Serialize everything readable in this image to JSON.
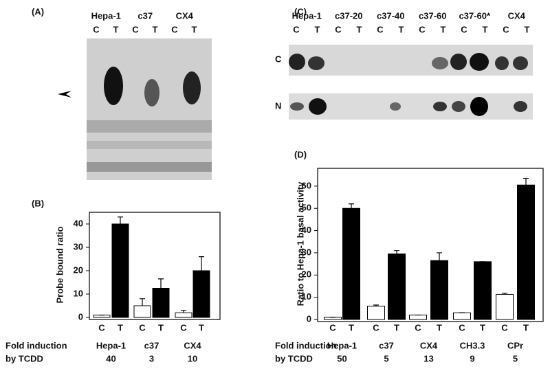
{
  "panel_a": {
    "label": "(A)",
    "groups": [
      "Hepa-1",
      "c37",
      "CX4"
    ],
    "lanes": [
      "C",
      "T",
      "C",
      "T",
      "C",
      "T"
    ]
  },
  "panel_c": {
    "label": "(C)",
    "groups": [
      "Hepa-1",
      "c37-20",
      "c37-40",
      "c37-60",
      "c37-60*",
      "CX4"
    ],
    "lanes": [
      "C",
      "T",
      "C",
      "T",
      "C",
      "T",
      "C",
      "T",
      "C",
      "T",
      "C",
      "T"
    ],
    "rows": [
      "C",
      "N"
    ]
  },
  "chart_data": [
    {
      "type": "bar",
      "panel": "(B)",
      "ylabel": "Probe bound ratio",
      "categories": [
        "Hepa-1",
        "c37",
        "CX4"
      ],
      "series": [
        {
          "name": "C",
          "color": "#ffffff",
          "values": [
            1,
            5,
            2
          ],
          "errors": [
            0,
            3,
            1
          ]
        },
        {
          "name": "T",
          "color": "#000000",
          "values": [
            40,
            12.5,
            20
          ],
          "errors": [
            3,
            4,
            6
          ]
        }
      ],
      "ylim": [
        0,
        45
      ],
      "yticks": [
        0,
        10,
        20,
        30,
        40
      ],
      "fold_label": [
        "Fold induction",
        "by TCDD"
      ],
      "fold_values": [
        40,
        3,
        10
      ]
    },
    {
      "type": "bar",
      "panel": "(D)",
      "ylabel": "Ratio to Hepa-1 basal activity",
      "categories": [
        "Hepa-1",
        "c37",
        "CX4",
        "CH3.3",
        "CPr"
      ],
      "series": [
        {
          "name": "C",
          "color": "#ffffff",
          "values": [
            1,
            6,
            2,
            3,
            11.3
          ],
          "errors": [
            0,
            0.5,
            0,
            0,
            0.5
          ]
        },
        {
          "name": "T",
          "color": "#000000",
          "values": [
            50,
            29.5,
            26.5,
            26,
            60.5
          ],
          "errors": [
            2,
            1.5,
            3.5,
            0,
            3
          ]
        }
      ],
      "ylim": [
        0,
        68
      ],
      "yticks": [
        0,
        10,
        20,
        30,
        40,
        50,
        60
      ],
      "fold_label": [
        "Fold induction",
        "by TCDD"
      ],
      "fold_values": [
        50,
        5,
        13,
        9,
        5
      ]
    }
  ]
}
